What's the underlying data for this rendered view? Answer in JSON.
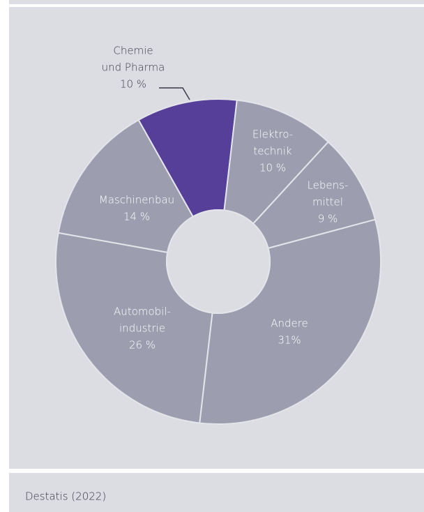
{
  "chart_data": {
    "type": "donut",
    "categories": [
      [
        "Chemie",
        "und Pharma"
      ],
      [
        "Elektro-",
        "technik"
      ],
      [
        "Lebens-",
        "mittel"
      ],
      [
        "Andere"
      ],
      [
        "Automobil-",
        "industrie"
      ],
      [
        "Maschinenbau"
      ]
    ],
    "values": [
      10,
      10,
      9,
      31,
      26,
      14
    ],
    "value_labels": [
      "10 %",
      "10 %",
      "9 %",
      "31%",
      "26 %",
      "14 %"
    ],
    "colors": [
      "#563f98",
      "#9c9eb0",
      "#9c9eb0",
      "#9c9eb0",
      "#9c9eb0",
      "#9c9eb0"
    ],
    "source": "Destatis (2022)"
  }
}
